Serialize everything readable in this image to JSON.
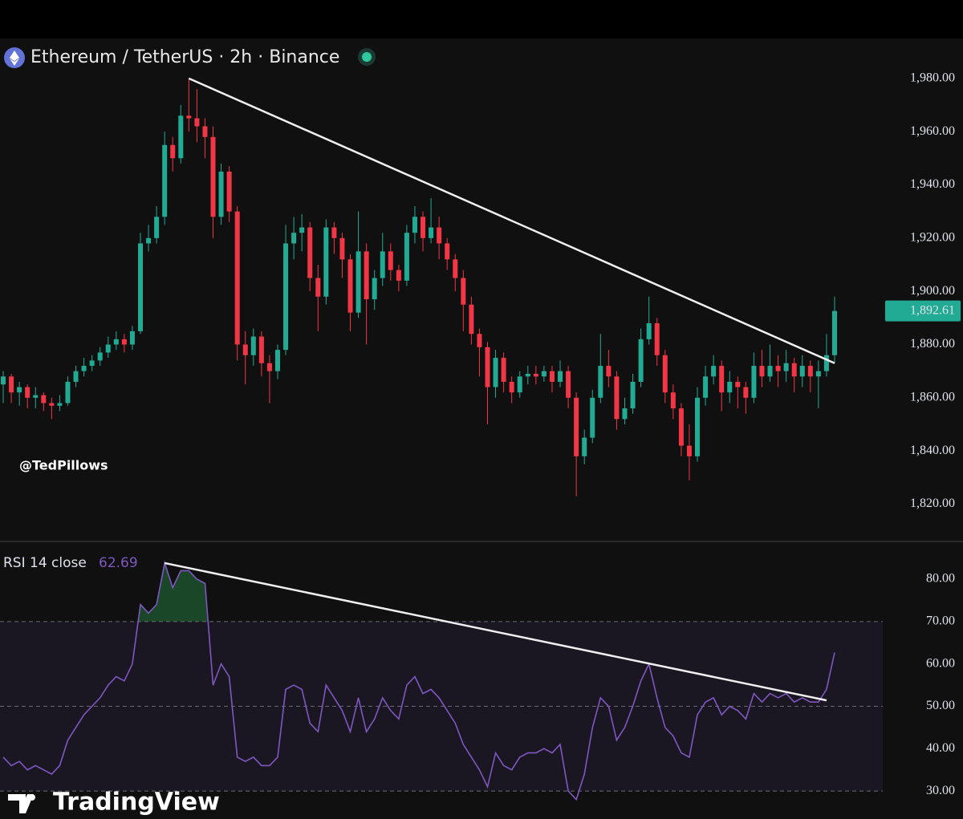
{
  "branding": "TradingView",
  "chart_data": [
    {
      "type": "candlestick",
      "title": "Ethereum / TetherUS · 2h · Binance",
      "annotation": "@TedPillows",
      "up_color": "#22ab94",
      "down_color": "#f23645",
      "ylim": [
        1806,
        1995
      ],
      "yticks": [
        {
          "value": 1820,
          "label": "1,820.00"
        },
        {
          "value": 1840,
          "label": "1,840.00"
        },
        {
          "value": 1860,
          "label": "1,860.00"
        },
        {
          "value": 1880,
          "label": "1,880.00"
        },
        {
          "value": 1900,
          "label": "1,900.00"
        },
        {
          "value": 1920,
          "label": "1,920.00"
        },
        {
          "value": 1940,
          "label": "1,940.00"
        },
        {
          "value": 1960,
          "label": "1,960.00"
        },
        {
          "value": 1980,
          "label": "1,980.00"
        }
      ],
      "last_label": "1,892.61",
      "trendline": {
        "start_index": 23,
        "start": 1980,
        "end_index": 103,
        "end": 1873
      },
      "candles": [
        [
          1865,
          1870,
          1858,
          1868
        ],
        [
          1868,
          1869,
          1858,
          1862
        ],
        [
          1862,
          1866,
          1857,
          1864
        ],
        [
          1864,
          1865,
          1856,
          1860
        ],
        [
          1860,
          1864,
          1856,
          1861
        ],
        [
          1861,
          1862,
          1855,
          1858
        ],
        [
          1858,
          1860,
          1852,
          1857
        ],
        [
          1857,
          1861,
          1855,
          1858
        ],
        [
          1858,
          1868,
          1857,
          1866
        ],
        [
          1866,
          1872,
          1864,
          1870
        ],
        [
          1870,
          1875,
          1868,
          1872
        ],
        [
          1872,
          1876,
          1870,
          1874
        ],
        [
          1874,
          1879,
          1872,
          1877
        ],
        [
          1877,
          1883,
          1875,
          1880
        ],
        [
          1880,
          1885,
          1878,
          1882
        ],
        [
          1882,
          1884,
          1877,
          1880
        ],
        [
          1880,
          1887,
          1878,
          1885
        ],
        [
          1885,
          1922,
          1884,
          1918
        ],
        [
          1918,
          1925,
          1915,
          1920
        ],
        [
          1920,
          1932,
          1918,
          1928
        ],
        [
          1928,
          1960,
          1925,
          1955
        ],
        [
          1955,
          1958,
          1945,
          1950
        ],
        [
          1950,
          1970,
          1948,
          1966
        ],
        [
          1966,
          1980,
          1960,
          1965
        ],
        [
          1965,
          1976,
          1956,
          1962
        ],
        [
          1962,
          1965,
          1950,
          1958
        ],
        [
          1958,
          1962,
          1920,
          1928
        ],
        [
          1928,
          1948,
          1925,
          1945
        ],
        [
          1945,
          1947,
          1926,
          1930
        ],
        [
          1930,
          1932,
          1874,
          1880
        ],
        [
          1880,
          1885,
          1865,
          1876
        ],
        [
          1876,
          1886,
          1872,
          1883
        ],
        [
          1883,
          1885,
          1868,
          1873
        ],
        [
          1873,
          1876,
          1858,
          1870
        ],
        [
          1870,
          1880,
          1867,
          1878
        ],
        [
          1878,
          1925,
          1876,
          1918
        ],
        [
          1918,
          1928,
          1912,
          1922
        ],
        [
          1922,
          1929,
          1915,
          1924
        ],
        [
          1924,
          1926,
          1900,
          1905
        ],
        [
          1905,
          1910,
          1885,
          1898
        ],
        [
          1898,
          1927,
          1895,
          1924
        ],
        [
          1924,
          1926,
          1914,
          1920
        ],
        [
          1920,
          1922,
          1905,
          1912
        ],
        [
          1912,
          1914,
          1885,
          1892
        ],
        [
          1892,
          1930,
          1890,
          1915
        ],
        [
          1915,
          1918,
          1880,
          1897
        ],
        [
          1897,
          1908,
          1893,
          1905
        ],
        [
          1905,
          1922,
          1902,
          1915
        ],
        [
          1915,
          1918,
          1904,
          1908
        ],
        [
          1908,
          1910,
          1900,
          1904
        ],
        [
          1904,
          1925,
          1902,
          1922
        ],
        [
          1922,
          1932,
          1918,
          1928
        ],
        [
          1928,
          1930,
          1915,
          1920
        ],
        [
          1920,
          1935,
          1918,
          1924
        ],
        [
          1924,
          1928,
          1912,
          1918
        ],
        [
          1918,
          1920,
          1908,
          1912
        ],
        [
          1912,
          1914,
          1900,
          1905
        ],
        [
          1905,
          1908,
          1885,
          1895
        ],
        [
          1895,
          1898,
          1880,
          1884
        ],
        [
          1884,
          1886,
          1868,
          1879
        ],
        [
          1879,
          1881,
          1850,
          1864
        ],
        [
          1864,
          1878,
          1860,
          1875
        ],
        [
          1875,
          1877,
          1862,
          1866
        ],
        [
          1866,
          1868,
          1858,
          1862
        ],
        [
          1862,
          1870,
          1860,
          1868
        ],
        [
          1868,
          1872,
          1865,
          1869
        ],
        [
          1869,
          1872,
          1865,
          1868
        ],
        [
          1868,
          1872,
          1866,
          1870
        ],
        [
          1870,
          1872,
          1862,
          1866
        ],
        [
          1866,
          1874,
          1864,
          1870
        ],
        [
          1870,
          1872,
          1856,
          1860
        ],
        [
          1860,
          1862,
          1823,
          1838
        ],
        [
          1838,
          1848,
          1835,
          1845
        ],
        [
          1845,
          1863,
          1843,
          1860
        ],
        [
          1860,
          1884,
          1858,
          1872
        ],
        [
          1872,
          1878,
          1864,
          1868
        ],
        [
          1868,
          1870,
          1848,
          1852
        ],
        [
          1852,
          1860,
          1850,
          1856
        ],
        [
          1856,
          1869,
          1854,
          1866
        ],
        [
          1866,
          1886,
          1864,
          1882
        ],
        [
          1882,
          1898,
          1880,
          1888
        ],
        [
          1888,
          1890,
          1872,
          1876
        ],
        [
          1876,
          1878,
          1858,
          1862
        ],
        [
          1862,
          1865,
          1852,
          1856
        ],
        [
          1856,
          1858,
          1838,
          1842
        ],
        [
          1842,
          1850,
          1829,
          1838
        ],
        [
          1838,
          1864,
          1836,
          1860
        ],
        [
          1860,
          1872,
          1857,
          1868
        ],
        [
          1868,
          1876,
          1865,
          1872
        ],
        [
          1872,
          1874,
          1855,
          1862
        ],
        [
          1862,
          1870,
          1858,
          1866
        ],
        [
          1866,
          1868,
          1856,
          1864
        ],
        [
          1864,
          1866,
          1854,
          1860
        ],
        [
          1860,
          1877,
          1858,
          1872
        ],
        [
          1872,
          1878,
          1864,
          1868
        ],
        [
          1868,
          1880,
          1866,
          1872
        ],
        [
          1872,
          1876,
          1864,
          1870
        ],
        [
          1870,
          1878,
          1866,
          1873
        ],
        [
          1873,
          1875,
          1862,
          1868
        ],
        [
          1868,
          1876,
          1864,
          1872
        ],
        [
          1872,
          1874,
          1862,
          1868
        ],
        [
          1868,
          1874,
          1856,
          1870
        ],
        [
          1870,
          1884,
          1868,
          1876
        ],
        [
          1876,
          1898,
          1873,
          1892.61
        ]
      ]
    },
    {
      "type": "line",
      "title": "RSI 14 close",
      "value_label": "62.69",
      "color": "#7e57c2",
      "ylim": [
        23.4,
        88.9
      ],
      "yticks": [
        {
          "value": 30,
          "label": "30.00"
        },
        {
          "value": 40,
          "label": "40.00"
        },
        {
          "value": 50,
          "label": "50.00"
        },
        {
          "value": 60,
          "label": "60.00"
        },
        {
          "value": 70,
          "label": "70.00"
        },
        {
          "value": 80,
          "label": "80.00"
        }
      ],
      "levels": [
        70,
        50,
        30
      ],
      "trendline": {
        "start_index": 20,
        "start": 83.8,
        "end_index": 102,
        "end": 51.4
      },
      "values": [
        38,
        36,
        37,
        35,
        36,
        35,
        34,
        36,
        42,
        45,
        48,
        50,
        52,
        55,
        57,
        56,
        60,
        74,
        72,
        74,
        83.8,
        78,
        82,
        82,
        80,
        79,
        55,
        60,
        57,
        38,
        37,
        38,
        36,
        36,
        38,
        54,
        55,
        54,
        46,
        44,
        55,
        52,
        49,
        44,
        52,
        44,
        47,
        52,
        49,
        47,
        55,
        57,
        53,
        54,
        52,
        49,
        46,
        41,
        38,
        35,
        31,
        39,
        36,
        35,
        38,
        39,
        39,
        40,
        39,
        41,
        30,
        28,
        34,
        45,
        52,
        50,
        42,
        45,
        50,
        56,
        60,
        52,
        45,
        43,
        39,
        38,
        48,
        51,
        52,
        48,
        50,
        49,
        47,
        53,
        51,
        53,
        52,
        53,
        51,
        52,
        51,
        51,
        54,
        62.69
      ]
    }
  ]
}
